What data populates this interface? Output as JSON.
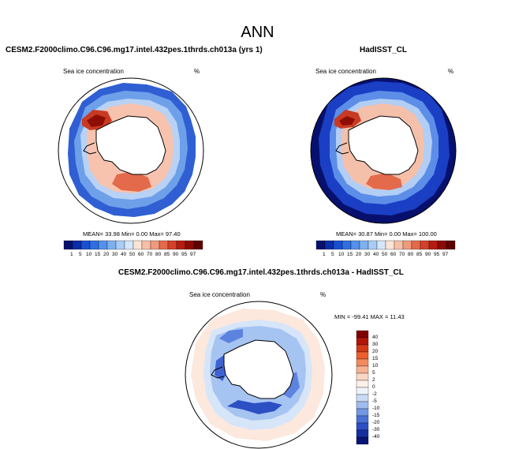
{
  "main_title": "ANN",
  "panels": [
    {
      "title": "CESM2.F2000climo.C96.C96.mg17.intel.432pes.1thrds.ch013a (yrs 1)",
      "variable": "Sea ice concentration",
      "units": "%",
      "stats": {
        "mean": "33.98",
        "min": "0.00",
        "max": "97.40"
      },
      "stats_text": "MEAN=  33.98  Min=   0.00  Max=  97.40"
    },
    {
      "title": "HadISST_CL",
      "variable": "Sea ice concentration",
      "units": "%",
      "stats": {
        "mean": "30.87",
        "min": "0.00",
        "max": "100.00"
      },
      "stats_text": "MEAN=  30.87  Min=   0.00  Max= 100.00"
    },
    {
      "title": "CESM2.F2000climo.C96.C96.mg17.intel.432pes.1thrds.ch013a - HadISST_CL",
      "variable": "Sea ice concentration",
      "units": "%",
      "stats": {
        "min": "-99.41",
        "max": "11.43"
      },
      "stats_text": "MIN = -99.41 MAX =  11.43"
    }
  ],
  "colorbar_abs": {
    "labels": [
      "1",
      "5",
      "10",
      "15",
      "20",
      "30",
      "40",
      "50",
      "60",
      "70",
      "80",
      "85",
      "90",
      "95",
      "97"
    ],
    "colors": [
      "#08106e",
      "#0b2da8",
      "#1a4fd0",
      "#2f6fe0",
      "#5590ea",
      "#7eb0f0",
      "#a9cdf5",
      "#d4e6fa",
      "#fbe3d6",
      "#f6c0a8",
      "#f09a7c",
      "#e46a4c",
      "#d3402b",
      "#b41c12",
      "#8c0a05",
      "#5e0000"
    ]
  },
  "colorbar_diff": {
    "labels": [
      "40",
      "30",
      "20",
      "15",
      "10",
      "5",
      "2",
      "0",
      "-2",
      "-5",
      "-10",
      "-15",
      "-20",
      "-30",
      "-40"
    ],
    "colors": [
      "#800000",
      "#b01506",
      "#d43a16",
      "#ec5f2e",
      "#f38a5e",
      "#f7b293",
      "#fbd6c4",
      "#fdf0e8",
      "#eef3fb",
      "#c9dbf5",
      "#9ebdee",
      "#7098e3",
      "#4a72d6",
      "#2d4fc4",
      "#1630a0",
      "#0a1474"
    ]
  }
}
